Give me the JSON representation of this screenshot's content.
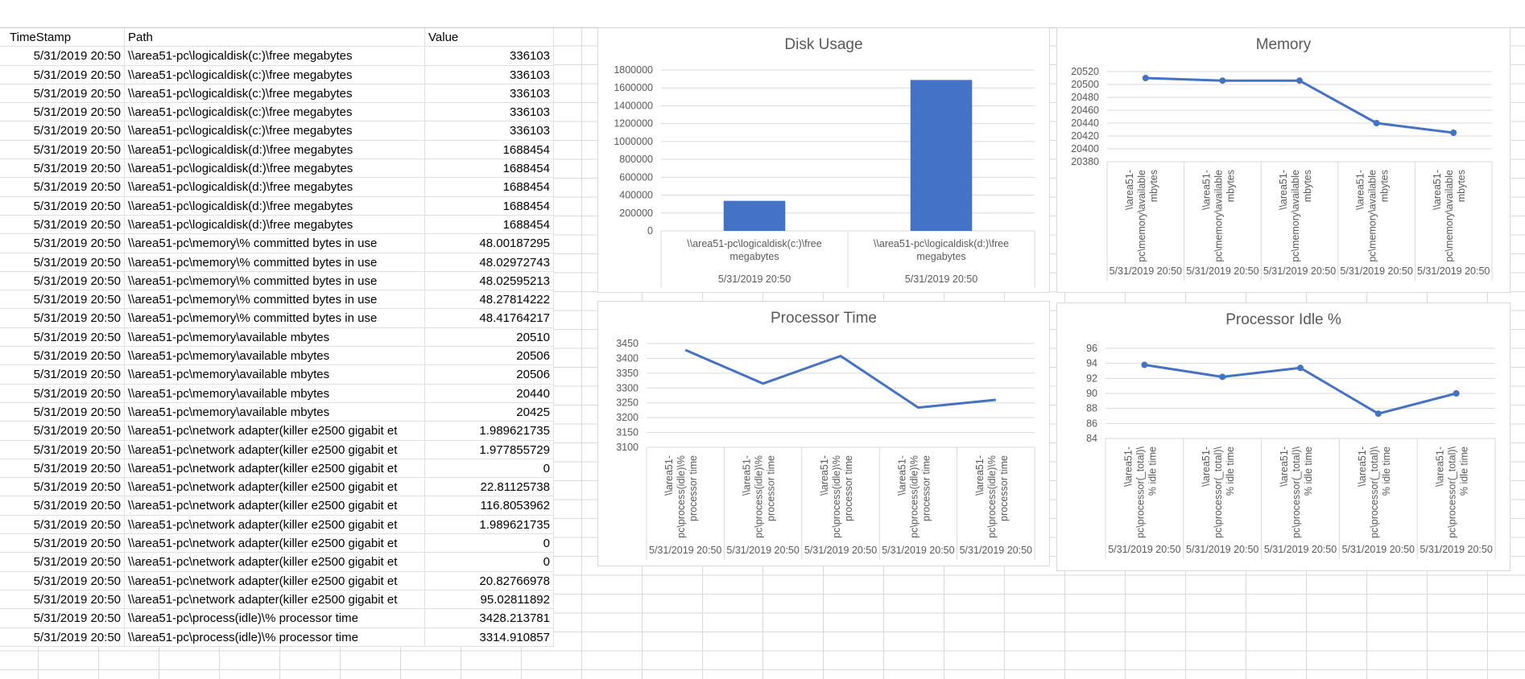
{
  "table": {
    "headers": [
      "TimeStamp",
      "Path",
      "Value"
    ],
    "rows": [
      [
        "5/31/2019 20:50",
        "\\\\area51-pc\\logicaldisk(c:)\\free megabytes",
        "336103"
      ],
      [
        "5/31/2019 20:50",
        "\\\\area51-pc\\logicaldisk(c:)\\free megabytes",
        "336103"
      ],
      [
        "5/31/2019 20:50",
        "\\\\area51-pc\\logicaldisk(c:)\\free megabytes",
        "336103"
      ],
      [
        "5/31/2019 20:50",
        "\\\\area51-pc\\logicaldisk(c:)\\free megabytes",
        "336103"
      ],
      [
        "5/31/2019 20:50",
        "\\\\area51-pc\\logicaldisk(c:)\\free megabytes",
        "336103"
      ],
      [
        "5/31/2019 20:50",
        "\\\\area51-pc\\logicaldisk(d:)\\free megabytes",
        "1688454"
      ],
      [
        "5/31/2019 20:50",
        "\\\\area51-pc\\logicaldisk(d:)\\free megabytes",
        "1688454"
      ],
      [
        "5/31/2019 20:50",
        "\\\\area51-pc\\logicaldisk(d:)\\free megabytes",
        "1688454"
      ],
      [
        "5/31/2019 20:50",
        "\\\\area51-pc\\logicaldisk(d:)\\free megabytes",
        "1688454"
      ],
      [
        "5/31/2019 20:50",
        "\\\\area51-pc\\logicaldisk(d:)\\free megabytes",
        "1688454"
      ],
      [
        "5/31/2019 20:50",
        "\\\\area51-pc\\memory\\% committed bytes in use",
        "48.00187295"
      ],
      [
        "5/31/2019 20:50",
        "\\\\area51-pc\\memory\\% committed bytes in use",
        "48.02972743"
      ],
      [
        "5/31/2019 20:50",
        "\\\\area51-pc\\memory\\% committed bytes in use",
        "48.02595213"
      ],
      [
        "5/31/2019 20:50",
        "\\\\area51-pc\\memory\\% committed bytes in use",
        "48.27814222"
      ],
      [
        "5/31/2019 20:50",
        "\\\\area51-pc\\memory\\% committed bytes in use",
        "48.41764217"
      ],
      [
        "5/31/2019 20:50",
        "\\\\area51-pc\\memory\\available mbytes",
        "20510"
      ],
      [
        "5/31/2019 20:50",
        "\\\\area51-pc\\memory\\available mbytes",
        "20506"
      ],
      [
        "5/31/2019 20:50",
        "\\\\area51-pc\\memory\\available mbytes",
        "20506"
      ],
      [
        "5/31/2019 20:50",
        "\\\\area51-pc\\memory\\available mbytes",
        "20440"
      ],
      [
        "5/31/2019 20:50",
        "\\\\area51-pc\\memory\\available mbytes",
        "20425"
      ],
      [
        "5/31/2019 20:50",
        "\\\\area51-pc\\network adapter(killer e2500 gigabit et",
        "1.989621735"
      ],
      [
        "5/31/2019 20:50",
        "\\\\area51-pc\\network adapter(killer e2500 gigabit et",
        "1.977855729"
      ],
      [
        "5/31/2019 20:50",
        "\\\\area51-pc\\network adapter(killer e2500 gigabit et",
        "0"
      ],
      [
        "5/31/2019 20:50",
        "\\\\area51-pc\\network adapter(killer e2500 gigabit et",
        "22.81125738"
      ],
      [
        "5/31/2019 20:50",
        "\\\\area51-pc\\network adapter(killer e2500 gigabit et",
        "116.8053962"
      ],
      [
        "5/31/2019 20:50",
        "\\\\area51-pc\\network adapter(killer e2500 gigabit et",
        "1.989621735"
      ],
      [
        "5/31/2019 20:50",
        "\\\\area51-pc\\network adapter(killer e2500 gigabit et",
        "0"
      ],
      [
        "5/31/2019 20:50",
        "\\\\area51-pc\\network adapter(killer e2500 gigabit et",
        "0"
      ],
      [
        "5/31/2019 20:50",
        "\\\\area51-pc\\network adapter(killer e2500 gigabit et",
        "20.82766978"
      ],
      [
        "5/31/2019 20:50",
        "\\\\area51-pc\\network adapter(killer e2500 gigabit et",
        "95.02811892"
      ],
      [
        "5/31/2019 20:50",
        "\\\\area51-pc\\process(idle)\\% processor time",
        "3428.213781"
      ],
      [
        "5/31/2019 20:50",
        "\\\\area51-pc\\process(idle)\\% processor time",
        "3314.910857"
      ]
    ]
  },
  "chart_data": [
    {
      "id": "disk",
      "type": "bar",
      "title": "Disk Usage",
      "categories": [
        [
          "\\\\area51-pc\\logicaldisk(c:)\\free",
          "megabytes"
        ],
        [
          "\\\\area51-pc\\logicaldisk(d:)\\free",
          "megabytes"
        ]
      ],
      "group_labels": [
        "5/31/2019 20:50",
        "5/31/2019 20:50"
      ],
      "values": [
        336103,
        1688454
      ],
      "ylim": [
        0,
        1800000
      ],
      "yticks": [
        0,
        200000,
        400000,
        600000,
        800000,
        1000000,
        1200000,
        1400000,
        1600000,
        1800000
      ],
      "color": "#4472c4"
    },
    {
      "id": "memory",
      "type": "line",
      "title": "Memory",
      "categories": [
        [
          "\\\\area51-",
          "pc\\memory\\available",
          "mbytes"
        ],
        [
          "\\\\area51-",
          "pc\\memory\\available",
          "mbytes"
        ],
        [
          "\\\\area51-",
          "pc\\memory\\available",
          "mbytes"
        ],
        [
          "\\\\area51-",
          "pc\\memory\\available",
          "mbytes"
        ],
        [
          "\\\\area51-",
          "pc\\memory\\available",
          "mbytes"
        ]
      ],
      "group_labels": [
        "5/31/2019 20:50",
        "5/31/2019 20:50",
        "5/31/2019 20:50",
        "5/31/2019 20:50",
        "5/31/2019 20:50"
      ],
      "values": [
        20510,
        20506,
        20506,
        20440,
        20425
      ],
      "ylim": [
        20380,
        20520
      ],
      "yticks": [
        20380,
        20400,
        20420,
        20440,
        20460,
        20480,
        20500,
        20520
      ],
      "markers": true,
      "color": "#4472c4"
    },
    {
      "id": "proc",
      "type": "line",
      "title": "Processor Time",
      "categories": [
        [
          "\\\\area51-",
          "pc\\process(idle)\\%",
          "processor time"
        ],
        [
          "\\\\area51-",
          "pc\\process(idle)\\%",
          "processor time"
        ],
        [
          "\\\\area51-",
          "pc\\process(idle)\\%",
          "processor time"
        ],
        [
          "\\\\area51-",
          "pc\\process(idle)\\%",
          "processor time"
        ],
        [
          "\\\\area51-",
          "pc\\process(idle)\\%",
          "processor time"
        ]
      ],
      "group_labels": [
        "5/31/2019 20:50",
        "5/31/2019 20:50",
        "5/31/2019 20:50",
        "5/31/2019 20:50",
        "5/31/2019 20:50"
      ],
      "values": [
        3428.213781,
        3314.910857,
        3408,
        3234,
        3260
      ],
      "ylim": [
        3100,
        3450
      ],
      "yticks": [
        3100,
        3150,
        3200,
        3250,
        3300,
        3350,
        3400,
        3450
      ],
      "markers": false,
      "color": "#4472c4"
    },
    {
      "id": "idle",
      "type": "line",
      "title": "Processor Idle %",
      "categories": [
        [
          "\\\\area51-",
          "pc\\processor(_total)\\",
          "% idle time"
        ],
        [
          "\\\\area51-",
          "pc\\processor(_total)\\",
          "% idle time"
        ],
        [
          "\\\\area51-",
          "pc\\processor(_total)\\",
          "% idle time"
        ],
        [
          "\\\\area51-",
          "pc\\processor(_total)\\",
          "% idle time"
        ],
        [
          "\\\\area51-",
          "pc\\processor(_total)\\",
          "% idle time"
        ]
      ],
      "group_labels": [
        "5/31/2019 20:50",
        "5/31/2019 20:50",
        "5/31/2019 20:50",
        "5/31/2019 20:50",
        "5/31/2019 20:50"
      ],
      "values": [
        93.8,
        92.2,
        93.4,
        87.3,
        90.0
      ],
      "ylim": [
        84,
        96
      ],
      "yticks": [
        84,
        86,
        88,
        90,
        92,
        94,
        96
      ],
      "markers": true,
      "color": "#4472c4"
    }
  ]
}
